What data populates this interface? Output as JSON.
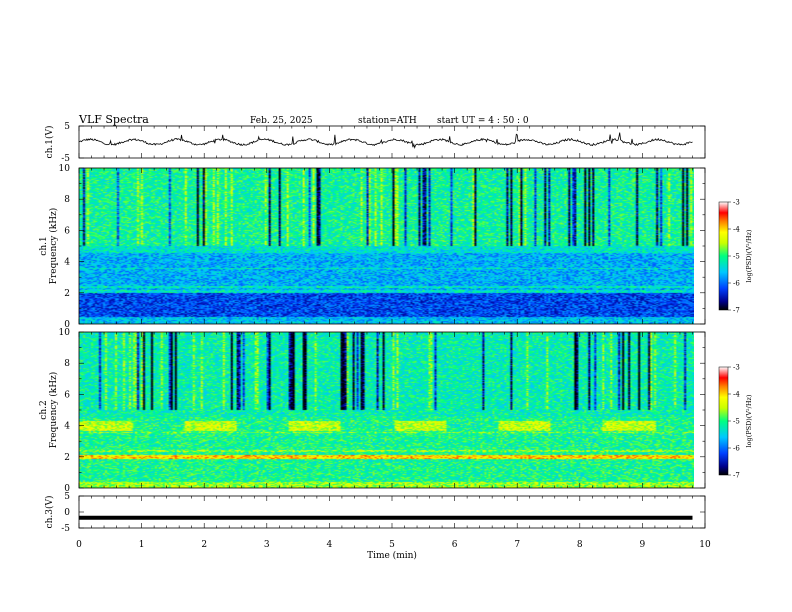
{
  "header": {
    "title": "VLF  Spectra",
    "date": "Feb. 25, 2025",
    "station": "station=ATH",
    "start_ut": "start  UT  =   4  : 50 : 0"
  },
  "chart_data": [
    {
      "type": "line",
      "panel": "ch1-waveform",
      "ylabel": "ch.1(V)",
      "ylim": [
        -5,
        5
      ],
      "yticks": [
        5,
        -5
      ],
      "x_range_min": [
        0,
        9.8
      ],
      "typical_value": 0
    },
    {
      "type": "heatmap",
      "panel": "ch1-spectrogram",
      "ylabel": "ch.1\nFrequency  (kHz)",
      "ylim": [
        0,
        10
      ],
      "yticks": [
        0,
        2,
        4,
        6,
        8,
        10
      ],
      "x_range_min": [
        0,
        9.8
      ],
      "colorbar": {
        "label": "log(PSD)(V²/Hz)",
        "range": [
          -7,
          -3
        ],
        "ticks": [
          -3,
          -4,
          -5,
          -6,
          -7
        ]
      },
      "features": [
        {
          "description": "bright band",
          "freq_khz": 4.0
        },
        {
          "description": "dark band",
          "freq_khz": [
            0.5,
            2.0
          ]
        }
      ]
    },
    {
      "type": "heatmap",
      "panel": "ch2-spectrogram",
      "ylabel": "ch.2\nFrequency  (kHz)",
      "ylim": [
        0,
        10
      ],
      "yticks": [
        0,
        2,
        4,
        6,
        8,
        10
      ],
      "x_range_min": [
        0,
        9.8
      ],
      "colorbar": {
        "label": "log(PSD)(V²/Hz)",
        "range": [
          -7,
          -3
        ],
        "ticks": [
          -3,
          -4,
          -5,
          -6,
          -7
        ]
      },
      "features": [
        {
          "description": "bright band",
          "freq_khz": 4.0
        },
        {
          "description": "bright line",
          "freq_khz": 2.0
        }
      ]
    },
    {
      "type": "line",
      "panel": "ch3-waveform",
      "ylabel": "ch.3(V)",
      "ylim": [
        -5,
        5
      ],
      "yticks": [
        5,
        0,
        -5
      ],
      "x_range_min": [
        0,
        9.8
      ],
      "typical_value": -1.8
    }
  ],
  "xaxis": {
    "label": "Time  (min)",
    "xlim": [
      0,
      10
    ],
    "ticks": [
      0,
      1,
      2,
      3,
      4,
      5,
      6,
      7,
      8,
      9,
      10
    ]
  }
}
